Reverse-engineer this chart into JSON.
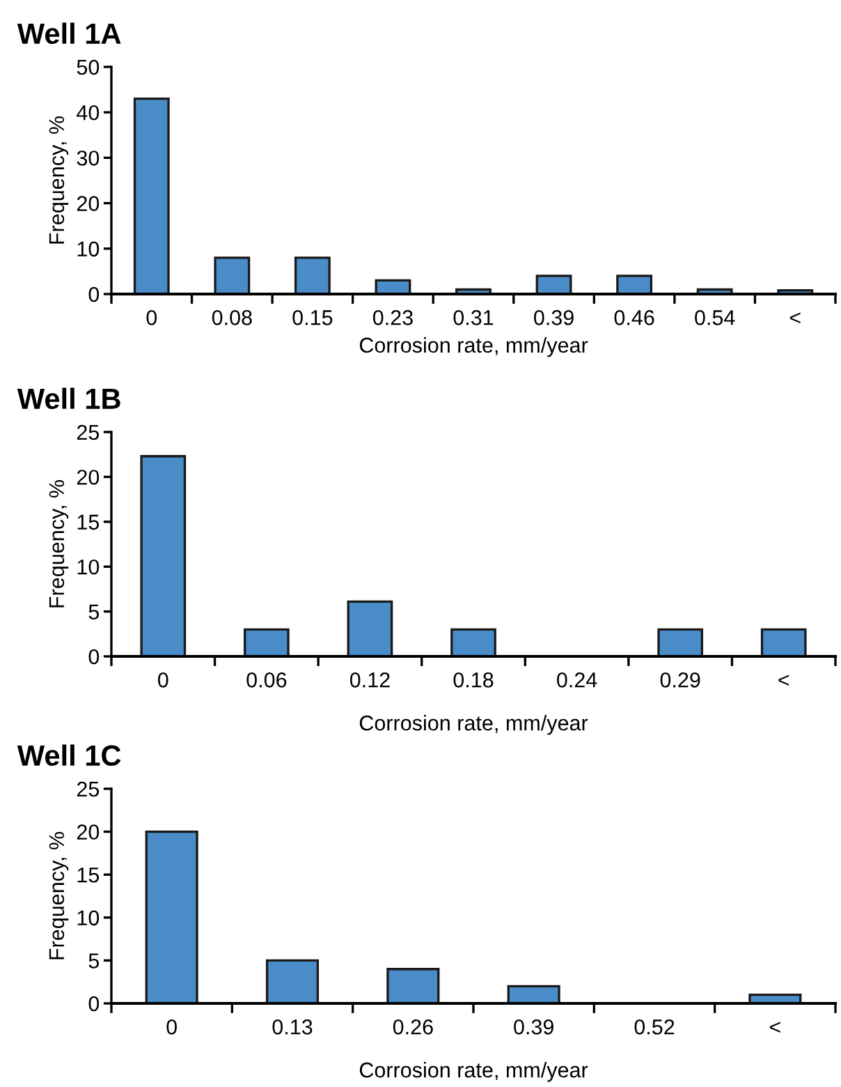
{
  "chart_data": [
    {
      "type": "bar",
      "title": "Well 1A",
      "xlabel": "Corrosion rate, mm/year",
      "ylabel": "Frequency, %",
      "categories": [
        "0",
        "0.08",
        "0.15",
        "0.23",
        "0.31",
        "0.39",
        "0.46",
        "0.54",
        "<"
      ],
      "values": [
        43,
        8,
        8,
        3,
        1,
        4,
        4,
        1,
        0.8
      ],
      "color": "#4a8cc8",
      "ylim": [
        0,
        50
      ],
      "yticks": [
        0,
        10,
        20,
        30,
        40,
        50
      ],
      "grid": false,
      "legend": false
    },
    {
      "type": "bar",
      "title": "Well 1B",
      "xlabel": "Corrosion rate, mm/year",
      "ylabel": "Frequency, %",
      "categories": [
        "0",
        "0.06",
        "0.12",
        "0.18",
        "0.24",
        "0.29",
        "<"
      ],
      "values": [
        22.3,
        3,
        6.1,
        3,
        0,
        3,
        3
      ],
      "color": "#4a8cc8",
      "ylim": [
        0,
        25
      ],
      "yticks": [
        0,
        5,
        10,
        15,
        20,
        25
      ],
      "grid": false,
      "legend": false
    },
    {
      "type": "bar",
      "title": "Well 1C",
      "xlabel": "Corrosion rate, mm/year",
      "ylabel": "Frequency, %",
      "categories": [
        "0",
        "0.13",
        "0.26",
        "0.39",
        "0.52",
        "<"
      ],
      "values": [
        20,
        5,
        4,
        2,
        0,
        1
      ],
      "color": "#4a8cc8",
      "ylim": [
        0,
        25
      ],
      "yticks": [
        0,
        5,
        10,
        15,
        20,
        25
      ],
      "grid": false,
      "legend": false
    }
  ]
}
